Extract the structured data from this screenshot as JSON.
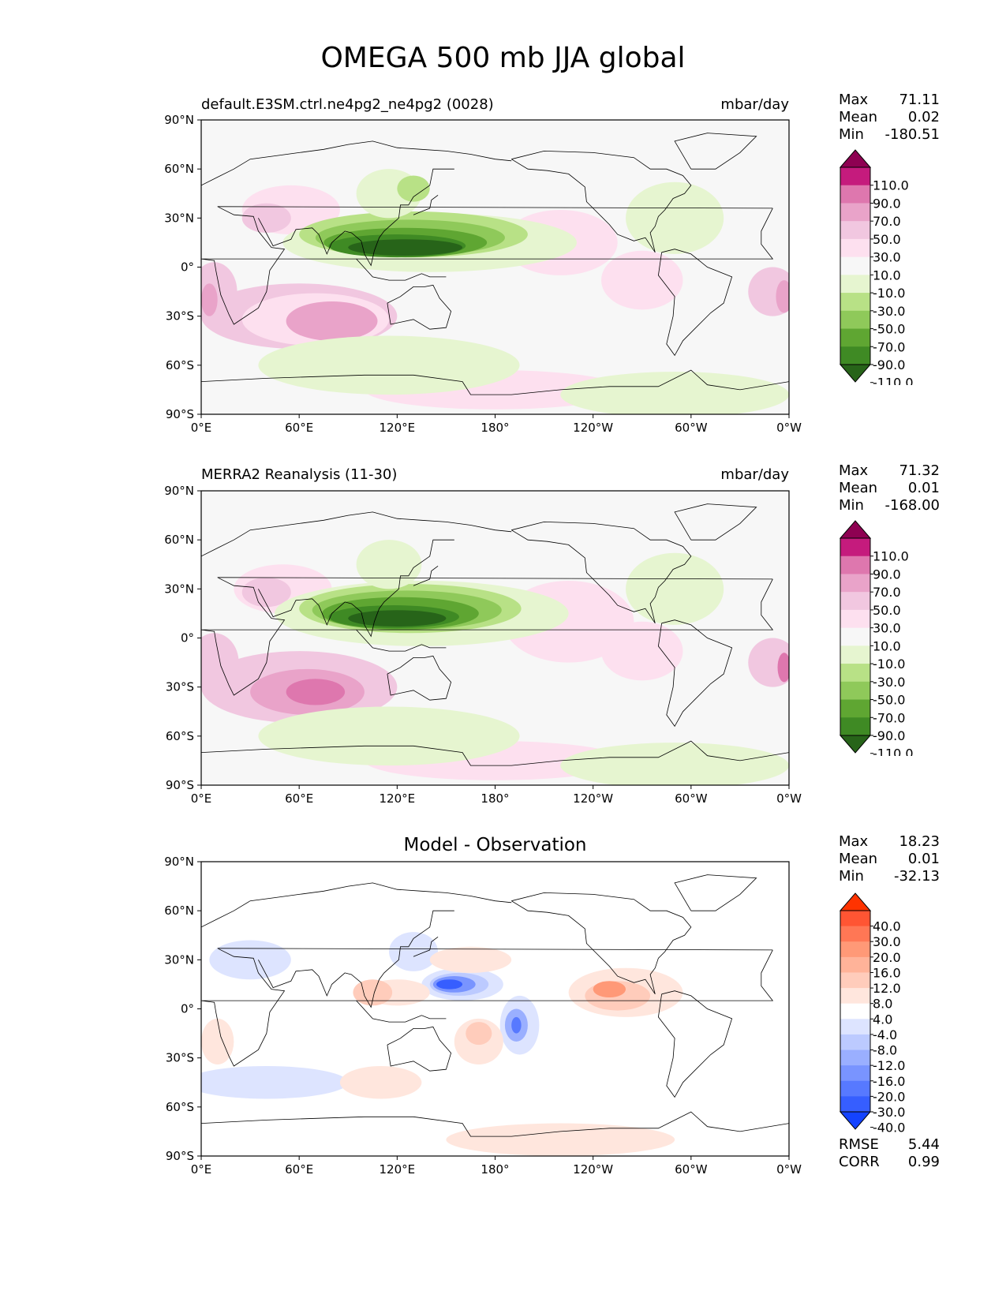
{
  "figure_title": "OMEGA 500 mb JJA global",
  "axes": {
    "lat_ticks": [
      "90°N",
      "60°N",
      "30°N",
      "0°",
      "30°S",
      "60°S",
      "90°S"
    ],
    "lon_ticks": [
      "0°E",
      "60°E",
      "120°E",
      "180°",
      "120°W",
      "60°W",
      "0°W"
    ]
  },
  "panels": [
    {
      "title_left": "default.E3SM.ctrl.ne4pg2_ne4pg2 (0028)",
      "title_right": "mbar/day",
      "stats": {
        "max_label": "Max",
        "max": "71.11",
        "mean_label": "Mean",
        "mean": "0.02",
        "min_label": "Min",
        "min": "-180.51"
      },
      "colorbar": {
        "labels": [
          "110.0",
          "90.0",
          "70.0",
          "50.0",
          "30.0",
          "10.0",
          "-10.0",
          "-30.0",
          "-50.0",
          "-70.0",
          "-90.0",
          "-110.0"
        ],
        "colors": [
          "#8e0152",
          "#c51b7d",
          "#de77ae",
          "#e9a3c9",
          "#f1c7e0",
          "#fde0ef",
          "#f7f7f7",
          "#e6f5d0",
          "#b8e186",
          "#8fc95a",
          "#5fa632",
          "#3f8a24",
          "#276419"
        ]
      }
    },
    {
      "title_left": "MERRA2 Reanalysis (11-30)",
      "title_right": "mbar/day",
      "stats": {
        "max_label": "Max",
        "max": "71.32",
        "mean_label": "Mean",
        "mean": "0.01",
        "min_label": "Min",
        "min": "-168.00"
      },
      "colorbar": {
        "labels": [
          "110.0",
          "90.0",
          "70.0",
          "50.0",
          "30.0",
          "10.0",
          "-10.0",
          "-30.0",
          "-50.0",
          "-70.0",
          "-90.0",
          "-110.0"
        ],
        "colors": [
          "#8e0152",
          "#c51b7d",
          "#de77ae",
          "#e9a3c9",
          "#f1c7e0",
          "#fde0ef",
          "#f7f7f7",
          "#e6f5d0",
          "#b8e186",
          "#8fc95a",
          "#5fa632",
          "#3f8a24",
          "#276419"
        ]
      }
    },
    {
      "title_center": "Model - Observation",
      "stats": {
        "max_label": "Max",
        "max": "18.23",
        "mean_label": "Mean",
        "mean": "0.01",
        "min_label": "Min",
        "min": "-32.13"
      },
      "colorbar": {
        "labels": [
          "40.0",
          "30.0",
          "20.0",
          "16.0",
          "12.0",
          "8.0",
          "4.0",
          "-4.0",
          "-8.0",
          "-12.0",
          "-16.0",
          "-20.0",
          "-30.0",
          "-40.0"
        ],
        "colors": [
          "#ff3300",
          "#ff5533",
          "#ff7755",
          "#ff9977",
          "#ffb399",
          "#ffccbb",
          "#ffe6dd",
          "#ffffff",
          "#dde4ff",
          "#bccaff",
          "#9aafff",
          "#7994ff",
          "#5779ff",
          "#365eff",
          "#1443ff"
        ]
      },
      "metrics": {
        "rmse_label": "RMSE",
        "rmse": "5.44",
        "corr_label": "CORR",
        "corr": "0.99"
      }
    }
  ]
}
